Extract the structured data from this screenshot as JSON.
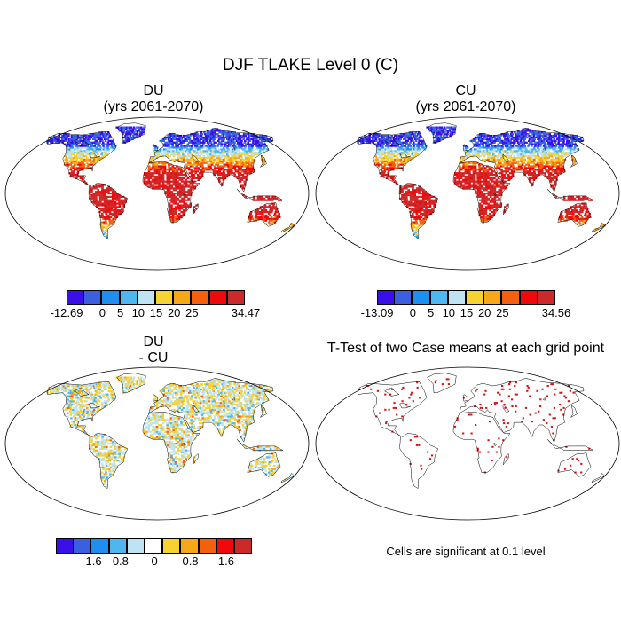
{
  "title": "DJF TLAKE Level 0 (C)",
  "panels": {
    "du": {
      "name": "DU",
      "subtitle": "(yrs 2061-2070)"
    },
    "cu": {
      "name": "CU",
      "subtitle": "(yrs 2061-2070)"
    },
    "diff": {
      "name": "DU",
      "subtitle": "- CU"
    },
    "ttest": {
      "title": "T-Test of two Case means at each grid point",
      "note": "Cells are significant at 0.1 level"
    }
  },
  "colorbars": {
    "du": {
      "colors": [
        "#3a0fe8",
        "#3c5fe0",
        "#1e8fef",
        "#4fb7ef",
        "#bfe3f3",
        "#f6d233",
        "#f6a81a",
        "#f4600e",
        "#ee0a0a",
        "#cc2a2a"
      ],
      "labels": [
        "-12.69",
        "0",
        "5",
        "10",
        "15",
        "20",
        "25",
        "34.47"
      ]
    },
    "cu": {
      "colors": [
        "#3a0fe8",
        "#3c5fe0",
        "#1e8fef",
        "#4fb7ef",
        "#bfe3f3",
        "#f6d233",
        "#f6a81a",
        "#f4600e",
        "#ee0a0a",
        "#cc2a2a"
      ],
      "labels": [
        "-13.09",
        "0",
        "5",
        "10",
        "15",
        "20",
        "25",
        "34.56"
      ]
    },
    "diff": {
      "colors": [
        "#3a0fe8",
        "#3c5fe0",
        "#1e8fef",
        "#4fb7ef",
        "#bfe3f3",
        "#ffffff",
        "#f6d233",
        "#f6a81a",
        "#f4600e",
        "#ee0a0a",
        "#cc2a2a"
      ],
      "labels": [
        "-1.6",
        "-0.8",
        "0",
        "0.8",
        "1.6"
      ]
    }
  },
  "legend_colors": {
    "land_outline": "#000000",
    "significant": "#dd1010"
  }
}
